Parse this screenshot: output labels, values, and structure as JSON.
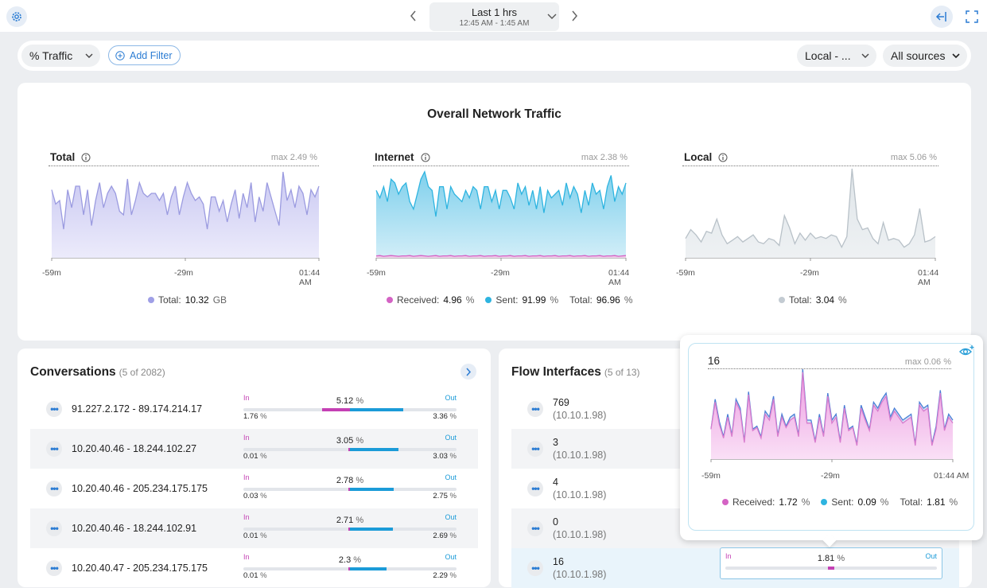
{
  "topbar": {
    "icons": {
      "settings": "gear-icon",
      "prev": "chevron-left-icon",
      "next": "chevron-right-icon",
      "collapse": "collapse-left-icon",
      "fullscreen": "fullscreen-icon"
    },
    "time_range_label": "Last 1 hrs",
    "time_range_sub": "12:45 AM - 1:45 AM"
  },
  "filterbar": {
    "metric": "% Traffic",
    "add_filter": "Add Filter",
    "scope": "Local - ...",
    "sources": "All sources"
  },
  "overview": {
    "title": "Overall Network Traffic",
    "x_ticks": [
      "-59m",
      "-29m",
      "01:44 AM"
    ],
    "charts": [
      {
        "title": "Total",
        "max": "max 2.49 %",
        "legend": [
          {
            "label": "Total:",
            "value": "10.32",
            "unit": "GB",
            "color": "#9f9fe6"
          }
        ]
      },
      {
        "title": "Internet",
        "max": "max 2.38 %",
        "legend": [
          {
            "label": "Received:",
            "value": "4.96",
            "unit": "%",
            "color": "#d463c4"
          },
          {
            "label": "Sent:",
            "value": "91.99",
            "unit": "%",
            "color": "#2eb4e0"
          },
          {
            "label": "Total:",
            "value": "96.96",
            "unit": "%",
            "color": ""
          }
        ]
      },
      {
        "title": "Local",
        "max": "max 5.06 %",
        "legend": [
          {
            "label": "Total:",
            "value": "3.04",
            "unit": "%",
            "color": "#c3cbd2"
          }
        ]
      }
    ]
  },
  "conversations": {
    "title": "Conversations",
    "subtitle": "(5 of 2082)",
    "in_label": "In",
    "out_label": "Out",
    "rows": [
      {
        "label": "91.227.2.172 - 89.174.214.17",
        "total": "5.12",
        "in": "1.76",
        "out": "3.36",
        "in_frac": 0.0657,
        "out_frac": 0.1254
      },
      {
        "label": "10.20.40.46 - 18.244.102.27",
        "total": "3.05",
        "in": "0.01",
        "out": "3.03",
        "in_frac": 0.0004,
        "out_frac": 0.1131
      },
      {
        "label": "10.20.40.46 - 205.234.175.175",
        "total": "2.78",
        "in": "0.03",
        "out": "2.75",
        "in_frac": 0.0011,
        "out_frac": 0.1026
      },
      {
        "label": "10.20.40.46 - 18.244.102.91",
        "total": "2.71",
        "in": "0.01",
        "out": "2.69",
        "in_frac": 0.0004,
        "out_frac": 0.1004
      },
      {
        "label": "10.20.40.47 - 205.234.175.175",
        "total": "2.3",
        "in": "0.01",
        "out": "2.29",
        "in_frac": 0.0004,
        "out_frac": 0.0854
      }
    ]
  },
  "flow_interfaces": {
    "title": "Flow Interfaces",
    "subtitle": "(5 of 13)",
    "rows": [
      {
        "name": "769",
        "ip": "(10.10.1.98)"
      },
      {
        "name": "3",
        "ip": "(10.10.1.98)"
      },
      {
        "name": "4",
        "ip": "(10.10.1.98)"
      },
      {
        "name": "0",
        "ip": "(10.10.1.98)"
      },
      {
        "name": "16",
        "ip": "(10.10.1.98)",
        "total": "1.81",
        "in_label": "In",
        "out_label": "Out"
      }
    ]
  },
  "popup": {
    "title": "16",
    "max": "max 0.06 %",
    "x_ticks": [
      "-59m",
      "-29m",
      "01:44 AM"
    ],
    "legend": [
      {
        "label": "Received:",
        "value": "1.72",
        "unit": "%",
        "color": "#d463c4"
      },
      {
        "label": "Sent:",
        "value": "0.09",
        "unit": "%",
        "color": "#2eb4e0"
      },
      {
        "label": "Total:",
        "value": "1.81",
        "unit": "%",
        "color": ""
      }
    ],
    "icon": "eye-plus-icon"
  },
  "chart_data": [
    {
      "type": "area",
      "title": "Total",
      "x_ticks": [
        "-59m",
        "-29m",
        "01:44 AM"
      ],
      "series": [
        {
          "values": [
            1.9,
            1.5,
            1.6,
            0.8,
            1.9,
            1.4,
            2.0,
            2.0,
            1.2,
            1.9,
            0.9,
            1.6,
            2.1,
            1.4,
            1.8,
            2.0,
            1.8,
            1.3,
            1.2,
            2.2,
            1.2,
            1.6,
            2.1,
            1.8,
            1.7,
            1.8,
            1.8,
            1.6,
            1.8,
            1.2,
            1.7,
            2.0,
            1.2,
            1.7,
            2.1,
            1.8,
            1.6,
            1.7,
            1.5,
            0.8,
            1.7,
            1.7,
            1.3,
            1.6,
            1.0,
            1.5,
            1.9,
            1.1,
            1.8,
            1.4,
            2.1,
            1.0,
            1.7,
            1.3,
            2.1,
            1.7,
            1.3,
            0.9,
            2.4,
            1.6,
            1.9,
            1.4,
            2.0,
            1.8,
            1.2,
            1.9,
            1.7,
            2.0
          ]
        }
      ]
    },
    {
      "type": "area",
      "title": "Internet",
      "x_ticks": [
        "-59m",
        "-29m",
        "01:44 AM"
      ],
      "series": [
        {
          "name": "Sent",
          "values": [
            1.8,
            1.6,
            1.9,
            1.5,
            2.1,
            2.0,
            1.7,
            1.9,
            2.0,
            1.5,
            1.3,
            1.7,
            2.1,
            2.3,
            1.9,
            1.8,
            1.1,
            1.9,
            1.9,
            1.3,
            1.9,
            1.7,
            1.6,
            1.5,
            1.8,
            1.6,
            1.9,
            1.8,
            1.3,
            1.9,
            1.9,
            1.5,
            1.8,
            1.3,
            1.8,
            1.8,
            1.6,
            1.3,
            2.0,
            1.7,
            1.9,
            1.4,
            1.8,
            1.3,
            1.9,
            1.2,
            1.8,
            1.6,
            1.7,
            1.8,
            1.4,
            2.0,
            1.6,
            1.9,
            1.7,
            1.2,
            1.8,
            1.4,
            2.0,
            1.7,
            1.8,
            1.3,
            1.9,
            2.2,
            1.5,
            1.9,
            1.7,
            2.0
          ]
        },
        {
          "name": "Received",
          "values": [
            0.05,
            0.06,
            0.04,
            0.05,
            0.06,
            0.05,
            0.04,
            0.05,
            0.05,
            0.06,
            0.04,
            0.05,
            0.06,
            0.05,
            0.04,
            0.05,
            0.06,
            0.04,
            0.05,
            0.05,
            0.06,
            0.04,
            0.05,
            0.05,
            0.06,
            0.04,
            0.05,
            0.05,
            0.06,
            0.04,
            0.05,
            0.05,
            0.06,
            0.04,
            0.05,
            0.05,
            0.06,
            0.04,
            0.05,
            0.05,
            0.06,
            0.04,
            0.05,
            0.05,
            0.06,
            0.04,
            0.05,
            0.05,
            0.06,
            0.04,
            0.05,
            0.05,
            0.06,
            0.04,
            0.05,
            0.05,
            0.06,
            0.04,
            0.05,
            0.05,
            0.06,
            0.04,
            0.05,
            0.05,
            0.06,
            0.04,
            0.05,
            0.06
          ]
        }
      ]
    },
    {
      "type": "area",
      "title": "Local",
      "x_ticks": [
        "-59m",
        "-29m",
        "01:44 AM"
      ],
      "series": [
        {
          "values": [
            1.1,
            1.6,
            1.3,
            0.9,
            1.5,
            1.4,
            2.2,
            1.3,
            0.8,
            1.0,
            1.2,
            0.9,
            1.1,
            1.3,
            0.9,
            0.8,
            1.1,
            1.0,
            0.7,
            2.4,
            1.7,
            0.8,
            1.4,
            1.0,
            1.4,
            1.1,
            1.2,
            1.1,
            1.3,
            1.2,
            0.6,
            1.2,
            5.06,
            2.2,
            1.6,
            1.7,
            1.1,
            0.8,
            2.0,
            1.0,
            1.1,
            1.0,
            0.6,
            0.8,
            1.3,
            2.8,
            0.9,
            1.0,
            1.2
          ]
        }
      ]
    },
    {
      "type": "area",
      "title": "16",
      "x_ticks": [
        "-59m",
        "-29m",
        "01:44 AM"
      ],
      "series": [
        {
          "name": "Sent",
          "values": [
            0.02,
            0.04,
            0.025,
            0.015,
            0.03,
            0.016,
            0.04,
            0.034,
            0.012,
            0.045,
            0.02,
            0.022,
            0.015,
            0.032,
            0.028,
            0.042,
            0.016,
            0.03,
            0.022,
            0.028,
            0.03,
            0.016,
            0.06,
            0.026,
            0.026,
            0.012,
            0.03,
            0.016,
            0.044,
            0.026,
            0.03,
            0.012,
            0.036,
            0.02,
            0.022,
            0.01,
            0.036,
            0.028,
            0.02,
            0.038,
            0.034,
            0.04,
            0.044,
            0.028,
            0.034,
            0.03,
            0.026,
            0.028,
            0.03,
            0.01,
            0.038,
            0.034,
            0.036,
            0.01,
            0.022,
            0.046,
            0.02,
            0.03,
            0.026
          ]
        },
        {
          "name": "Received",
          "values": [
            0.02,
            0.038,
            0.023,
            0.014,
            0.028,
            0.015,
            0.038,
            0.032,
            0.011,
            0.043,
            0.019,
            0.021,
            0.014,
            0.03,
            0.026,
            0.04,
            0.015,
            0.028,
            0.021,
            0.026,
            0.028,
            0.015,
            0.058,
            0.024,
            0.024,
            0.011,
            0.028,
            0.015,
            0.042,
            0.024,
            0.028,
            0.011,
            0.034,
            0.019,
            0.021,
            0.009,
            0.034,
            0.026,
            0.019,
            0.036,
            0.032,
            0.038,
            0.042,
            0.026,
            0.032,
            0.028,
            0.024,
            0.026,
            0.028,
            0.009,
            0.036,
            0.032,
            0.034,
            0.009,
            0.02,
            0.044,
            0.019,
            0.028,
            0.024
          ]
        }
      ]
    }
  ]
}
